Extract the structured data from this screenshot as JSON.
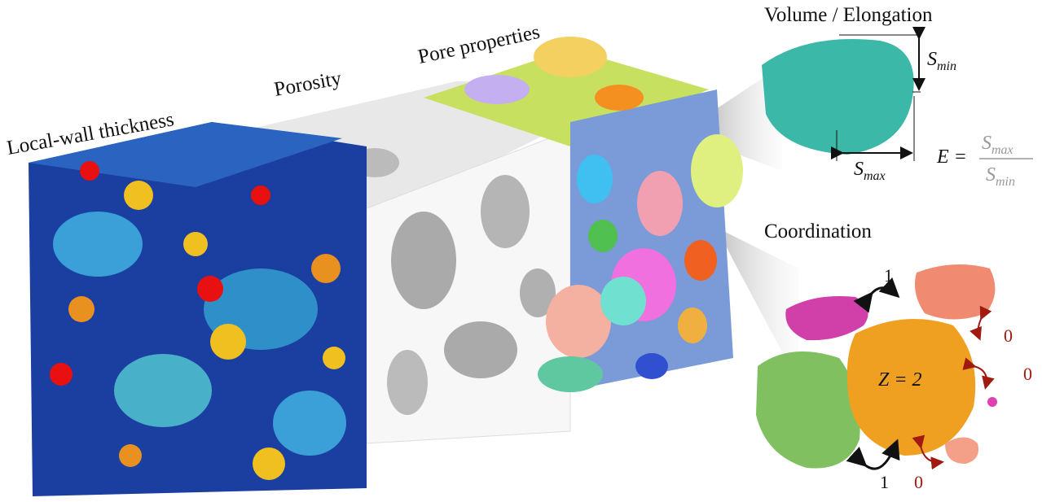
{
  "labels": {
    "wall_thickness": "Local-wall thickness",
    "porosity": "Porosity",
    "pore_properties": "Pore properties",
    "volume_elongation": "Volume / Elongation",
    "coordination": "Coordination"
  },
  "elongation": {
    "s_min": {
      "symbol": "S",
      "sub": "min"
    },
    "s_max": {
      "symbol": "S",
      "sub": "max"
    },
    "formula": {
      "lhs": "E =",
      "numerator": {
        "symbol": "S",
        "sub": "max"
      },
      "denominator": {
        "symbol": "S",
        "sub": "min"
      }
    }
  },
  "coordination": {
    "center": "Z = 2",
    "links": [
      "1",
      "1",
      "0",
      "0",
      "0"
    ]
  }
}
